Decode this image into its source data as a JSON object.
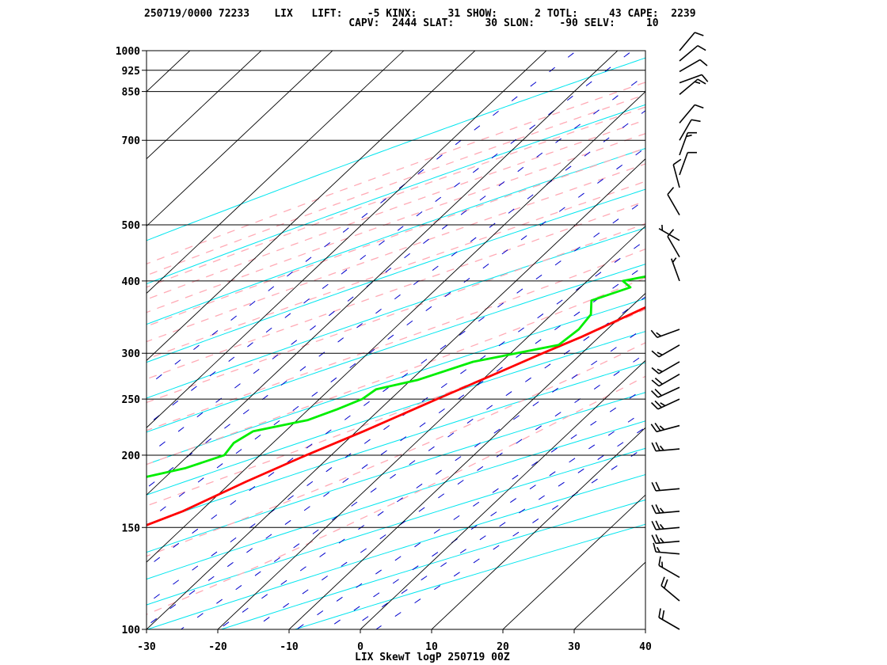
{
  "header": {
    "line1": "250719/0000 72233    LIX   LIFT:    -5 KINX:     31 SHOW:      2 TOTL:     43 CAPE:  2239",
    "line2": "                                 CAPV:  2444 SLAT:     30 SLON:    -90 SELV:     10"
  },
  "chart_data": {
    "type": "line",
    "title": "LIX SkewT logP 250719 00Z",
    "station": "LIX",
    "xlabel": "",
    "ylabel": "",
    "x_ticks": [
      "-30",
      "-20",
      "-10",
      "0",
      "10",
      "20",
      "30",
      "40"
    ],
    "x_tick_values": [
      -30,
      -20,
      -10,
      0,
      10,
      20,
      30,
      40
    ],
    "p_ticks": [
      "100",
      "150",
      "200",
      "250",
      "300",
      "400",
      "500",
      "700",
      "850",
      "925",
      "1000"
    ],
    "p_tick_values": [
      100,
      150,
      200,
      250,
      300,
      400,
      500,
      700,
      850,
      925,
      1000
    ],
    "xlim": [
      -30,
      40
    ],
    "ylim": [
      1000,
      100
    ],
    "y_scale": "log-pressure",
    "grid": true,
    "colors": {
      "temperature": "#ff0000",
      "dewpoint": "#00ee00",
      "isotherm": "#000000",
      "dry_adiabat": "#00e5ee",
      "moist_adiabat": "#ffaab5",
      "mixing_ratio": "#0000cc",
      "wind_barb": "#000000"
    },
    "series": [
      {
        "name": "temperature",
        "points": [
          [
            1000,
            30.5
          ],
          [
            975,
            28.0
          ],
          [
            950,
            25.5
          ],
          [
            925,
            24.8
          ],
          [
            900,
            24.0
          ],
          [
            875,
            23.2
          ],
          [
            850,
            22.5
          ],
          [
            800,
            20.5
          ],
          [
            750,
            18.7
          ],
          [
            700,
            17.2
          ],
          [
            680,
            16.2
          ],
          [
            650,
            14.5
          ],
          [
            600,
            11.5
          ],
          [
            550,
            8.5
          ],
          [
            500,
            5.4
          ],
          [
            470,
            3.0
          ],
          [
            450,
            0.8
          ],
          [
            420,
            -1.5
          ],
          [
            400,
            -3.5
          ],
          [
            380,
            -5.8
          ],
          [
            350,
            -9.0
          ],
          [
            320,
            -12.5
          ],
          [
            300,
            -15.5
          ],
          [
            280,
            -18.5
          ],
          [
            250,
            -23.5
          ],
          [
            220,
            -29.0
          ],
          [
            200,
            -33.5
          ],
          [
            180,
            -38.0
          ],
          [
            160,
            -42.5
          ],
          [
            150,
            -46.0
          ],
          [
            140,
            -50.5
          ],
          [
            130,
            -52.5
          ],
          [
            125,
            -53.2
          ],
          [
            120,
            -54.3
          ],
          [
            115,
            -55.0
          ],
          [
            110,
            -54.8
          ],
          [
            107,
            -54.2
          ],
          [
            100,
            -55.0
          ]
        ]
      },
      {
        "name": "dewpoint",
        "points": [
          [
            1000,
            24.0
          ],
          [
            975,
            24.0
          ],
          [
            950,
            24.0
          ],
          [
            925,
            22.5
          ],
          [
            900,
            21.0
          ],
          [
            875,
            18.0
          ],
          [
            850,
            17.0
          ],
          [
            825,
            15.0
          ],
          [
            800,
            16.5
          ],
          [
            780,
            17.5
          ],
          [
            760,
            19.0
          ],
          [
            740,
            17.5
          ],
          [
            720,
            16.5
          ],
          [
            700,
            14.5
          ],
          [
            680,
            13.0
          ],
          [
            660,
            10.0
          ],
          [
            640,
            11.0
          ],
          [
            620,
            9.5
          ],
          [
            600,
            10.5
          ],
          [
            580,
            9.0
          ],
          [
            570,
            10.0
          ],
          [
            560,
            8.5
          ],
          [
            550,
            9.0
          ],
          [
            540,
            8.0
          ],
          [
            520,
            6.5
          ],
          [
            500,
            2.5
          ],
          [
            490,
            1.0
          ],
          [
            470,
            -4.5
          ],
          [
            450,
            -8.0
          ],
          [
            430,
            -6.0
          ],
          [
            410,
            -11.5
          ],
          [
            400,
            -15.0
          ],
          [
            390,
            -13.0
          ],
          [
            370,
            -16.5
          ],
          [
            350,
            -14.5
          ],
          [
            330,
            -14.0
          ],
          [
            310,
            -14.5
          ],
          [
            290,
            -24.0
          ],
          [
            270,
            -29.0
          ],
          [
            260,
            -33.5
          ],
          [
            250,
            -34.0
          ],
          [
            240,
            -36.0
          ],
          [
            230,
            -38.5
          ],
          [
            220,
            -44.5
          ],
          [
            210,
            -45.5
          ],
          [
            200,
            -45.0
          ],
          [
            190,
            -48.5
          ],
          [
            180,
            -55.0
          ],
          [
            170,
            -58.0
          ],
          [
            165,
            -64.0
          ],
          [
            160,
            -58.0
          ],
          [
            150,
            -63.5
          ],
          [
            140,
            -65.5
          ],
          [
            130,
            -69.5
          ],
          [
            120,
            -72.0
          ],
          [
            110,
            -74.0
          ],
          [
            100,
            -72.0
          ]
        ]
      }
    ],
    "wind_barbs": [
      {
        "p": 100,
        "dir": 300,
        "spd": 20
      },
      {
        "p": 112,
        "dir": 310,
        "spd": 20
      },
      {
        "p": 123,
        "dir": 300,
        "spd": 15
      },
      {
        "p": 135,
        "dir": 275,
        "spd": 15
      },
      {
        "p": 142,
        "dir": 265,
        "spd": 25
      },
      {
        "p": 150,
        "dir": 265,
        "spd": 25
      },
      {
        "p": 160,
        "dir": 265,
        "spd": 25
      },
      {
        "p": 175,
        "dir": 265,
        "spd": 20
      },
      {
        "p": 205,
        "dir": 265,
        "spd": 25
      },
      {
        "p": 225,
        "dir": 255,
        "spd": 25
      },
      {
        "p": 250,
        "dir": 245,
        "spd": 25
      },
      {
        "p": 262,
        "dir": 245,
        "spd": 20
      },
      {
        "p": 276,
        "dir": 240,
        "spd": 20
      },
      {
        "p": 290,
        "dir": 240,
        "spd": 15
      },
      {
        "p": 310,
        "dir": 240,
        "spd": 15
      },
      {
        "p": 330,
        "dir": 250,
        "spd": 15
      },
      {
        "p": 400,
        "dir": 340,
        "spd": 5
      },
      {
        "p": 440,
        "dir": 330,
        "spd": 10
      },
      {
        "p": 470,
        "dir": 300,
        "spd": 5
      },
      {
        "p": 520,
        "dir": 330,
        "spd": 10
      },
      {
        "p": 580,
        "dir": 345,
        "spd": 10
      },
      {
        "p": 610,
        "dir": 20,
        "spd": 10
      },
      {
        "p": 660,
        "dir": 20,
        "spd": 15
      },
      {
        "p": 700,
        "dir": 30,
        "spd": 10
      },
      {
        "p": 750,
        "dir": 40,
        "spd": 10
      },
      {
        "p": 840,
        "dir": 50,
        "spd": 15
      },
      {
        "p": 880,
        "dir": 70,
        "spd": 10
      },
      {
        "p": 920,
        "dir": 60,
        "spd": 10
      },
      {
        "p": 960,
        "dir": 50,
        "spd": 10
      },
      {
        "p": 1000,
        "dir": 40,
        "spd": 10
      }
    ]
  }
}
